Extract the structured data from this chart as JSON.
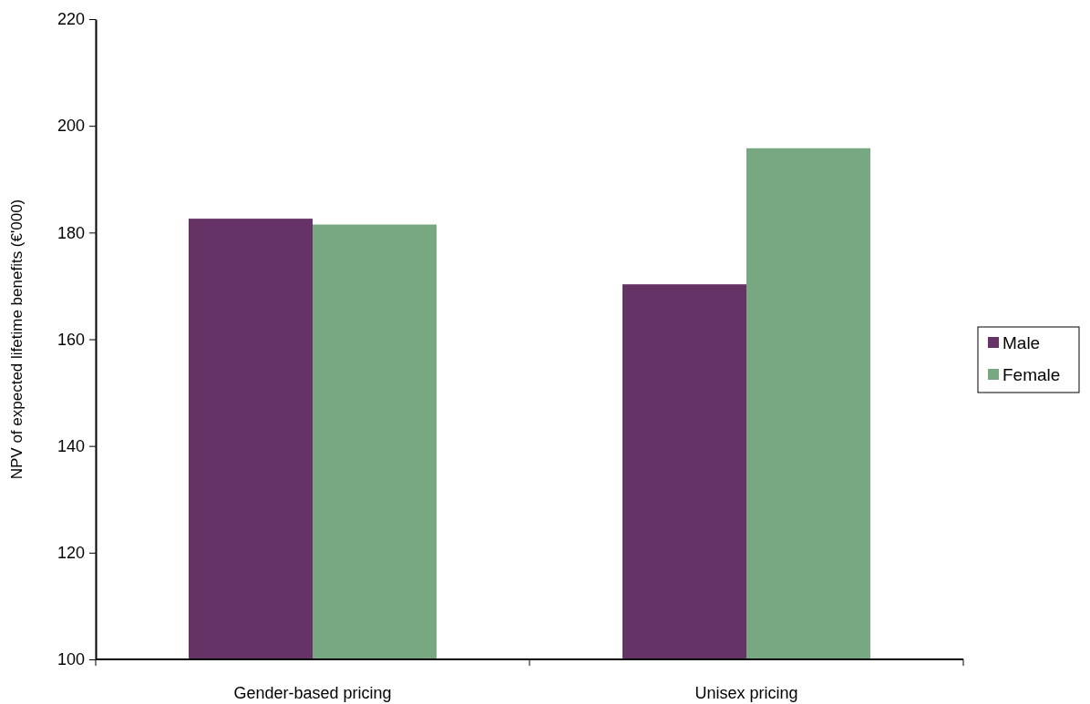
{
  "chart_data": {
    "type": "bar",
    "ylabel": "NPV of expected lifetime benefits (€'000)",
    "categories": [
      "Gender-based pricing",
      "Unisex pricing"
    ],
    "series": [
      {
        "name": "Male",
        "color": "#663366",
        "values": [
          182.6,
          170.3
        ]
      },
      {
        "name": "Female",
        "color": "#77a882",
        "values": [
          181.5,
          195.8
        ]
      }
    ],
    "ylim": [
      100,
      220
    ],
    "yticks": [
      100,
      120,
      140,
      160,
      180,
      200,
      220
    ],
    "grid": false,
    "legend": "right"
  }
}
